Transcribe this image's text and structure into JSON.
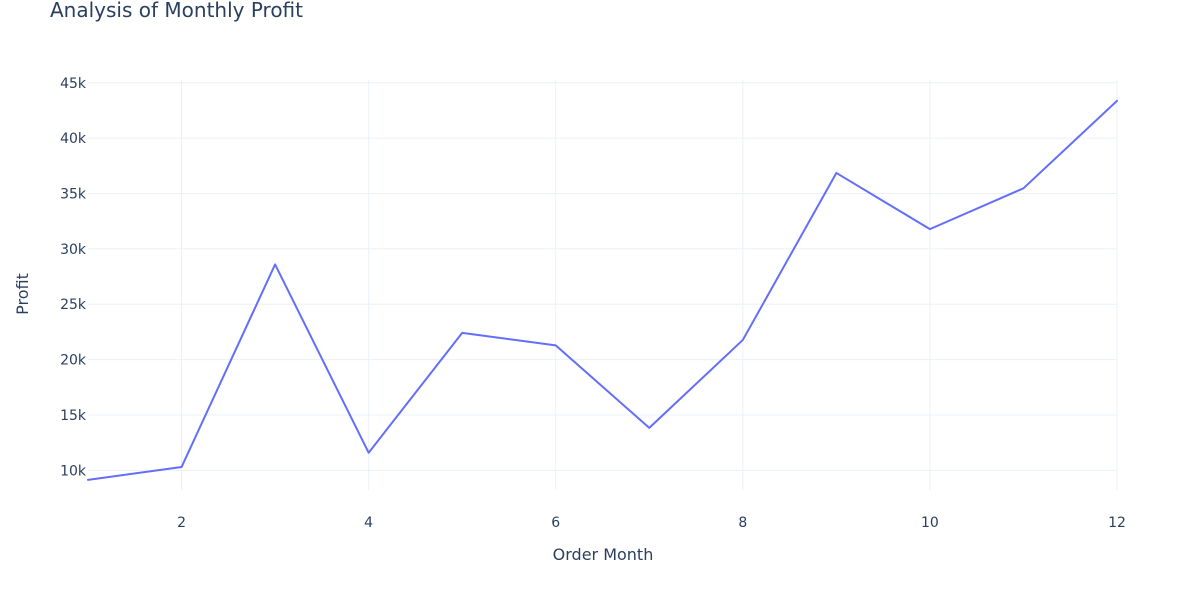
{
  "chart_data": {
    "type": "line",
    "title": "Analysis of Monthly Profit",
    "xlabel": "Order Month",
    "ylabel": "Profit",
    "x": [
      1,
      2,
      3,
      4,
      5,
      6,
      7,
      8,
      9,
      10,
      11,
      12
    ],
    "series": [
      {
        "values": [
          9134,
          10295,
          28595,
          11588,
          22411,
          21285,
          13832,
          21776,
          36857,
          31785,
          35469,
          43369
        ],
        "color": "#636efa"
      }
    ],
    "xlim": [
      1,
      12
    ],
    "ylim": [
      8222,
      45252
    ],
    "xticks": [
      2,
      4,
      6,
      8,
      10,
      12
    ],
    "xtick_labels": [
      "2",
      "4",
      "6",
      "8",
      "10",
      "12"
    ],
    "yticks": [
      10000,
      15000,
      20000,
      25000,
      30000,
      35000,
      40000,
      45000
    ],
    "ytick_labels": [
      "10k",
      "15k",
      "20k",
      "25k",
      "30k",
      "35k",
      "40k",
      "45k"
    ],
    "grid": true,
    "legend": "none"
  }
}
